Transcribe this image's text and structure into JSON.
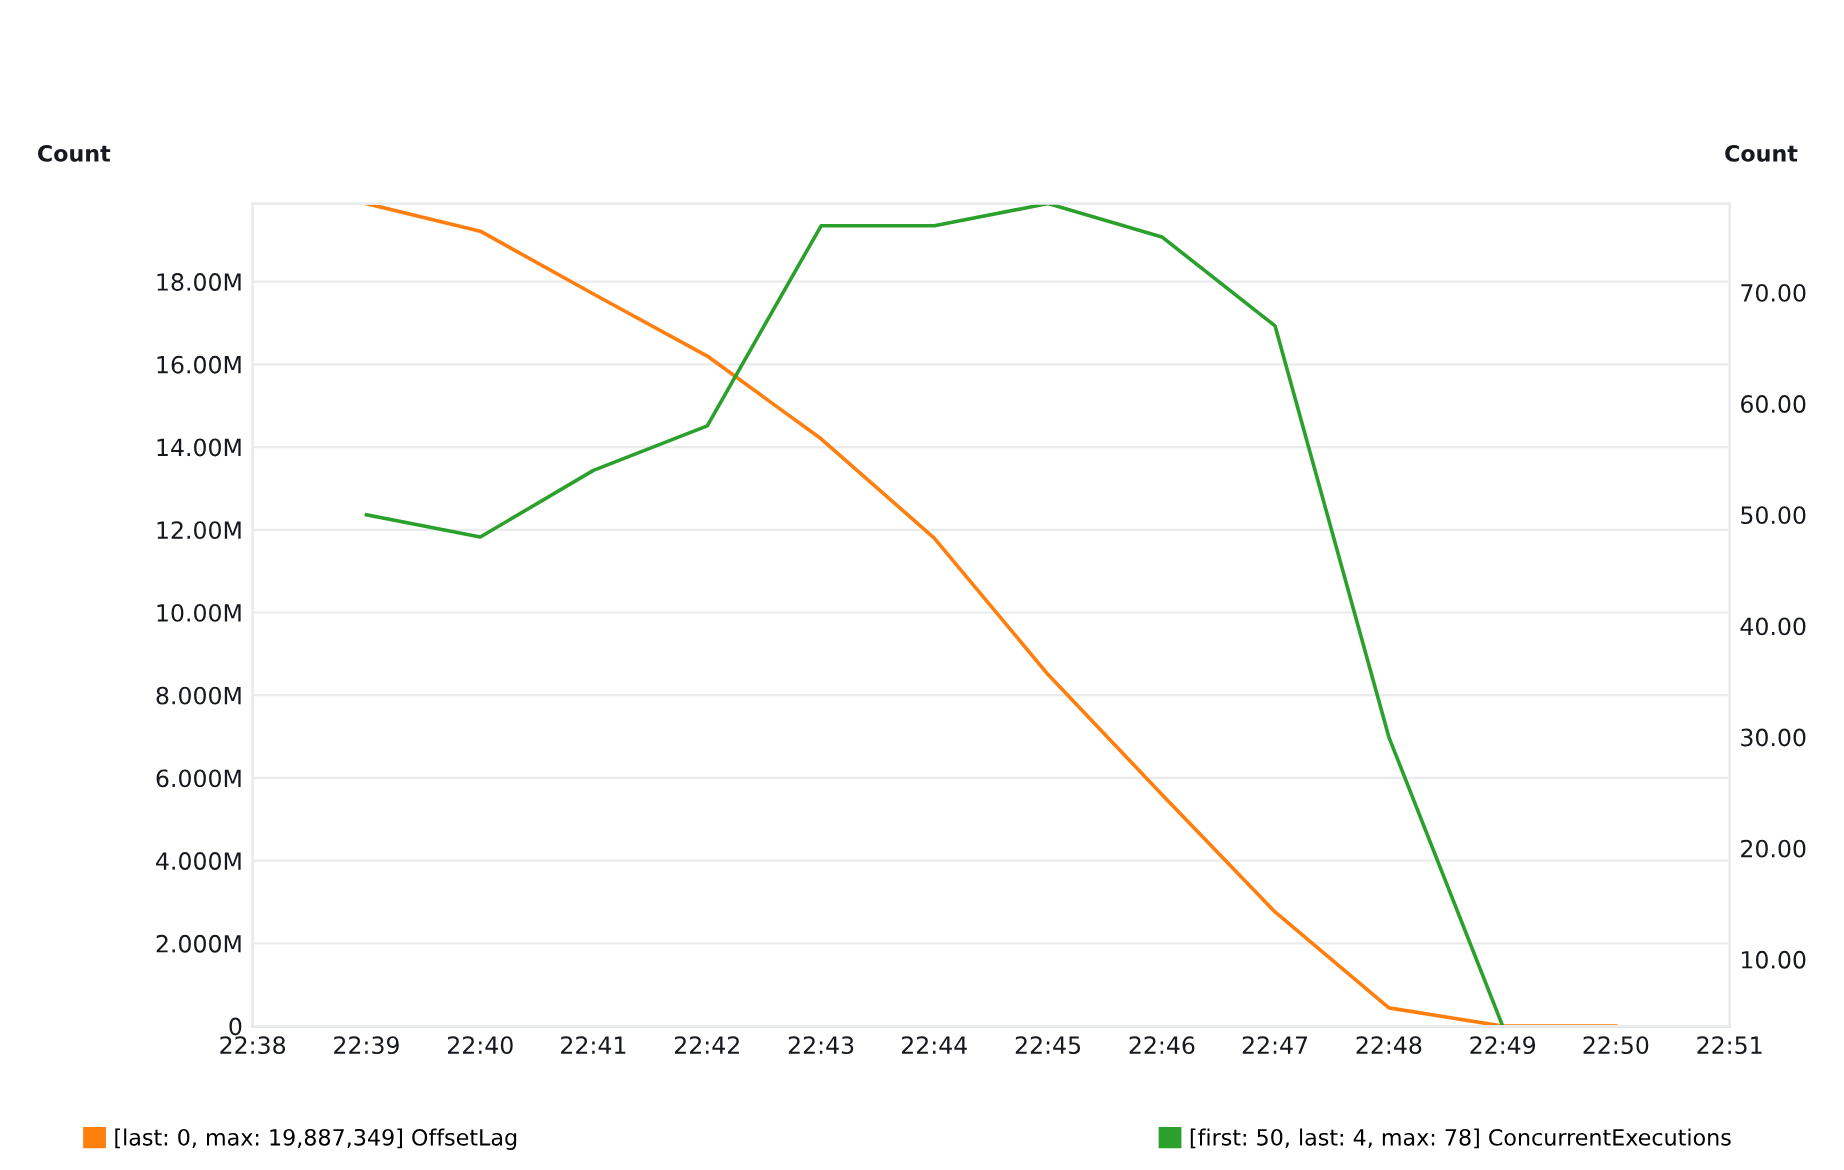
{
  "chart_data": {
    "type": "line",
    "ylabel": "Count",
    "y2label": "Count",
    "x": [
      22.65,
      22.6667,
      22.6833,
      22.7,
      22.7167,
      22.7333,
      22.75,
      22.7667,
      22.7833,
      22.8,
      22.8167,
      22.8333
    ],
    "series": [
      {
        "name": "[last: 0, max: 19,887,349] OffsetLag",
        "color": "#ff7f0e",
        "values": [
          19887349,
          19220000,
          17700000,
          16200000,
          14200000,
          11800000,
          8500000,
          5600000,
          2760000,
          440000,
          0,
          0
        ]
      },
      {
        "name": "[first: 50, last: 4, max: 78] ConcurrentExecutions",
        "color": "#2ca02c",
        "axis": "y2",
        "x": [
          22.65,
          22.6667,
          22.6833,
          22.7,
          22.7167,
          22.7333,
          22.75,
          22.7667,
          22.7833,
          22.8,
          22.8167
        ],
        "values": [
          50,
          48,
          54,
          58,
          76,
          76,
          78,
          75,
          67,
          30,
          4
        ]
      }
    ],
    "xlim": [
      22.6333,
      22.85
    ],
    "xticks": [
      {
        "value": 22.6333,
        "label": "22:38"
      },
      {
        "value": 22.65,
        "label": "22:39"
      },
      {
        "value": 22.6667,
        "label": "22:40"
      },
      {
        "value": 22.6833,
        "label": "22:41"
      },
      {
        "value": 22.7,
        "label": "22:42"
      },
      {
        "value": 22.7167,
        "label": "22:43"
      },
      {
        "value": 22.7333,
        "label": "22:44"
      },
      {
        "value": 22.75,
        "label": "22:45"
      },
      {
        "value": 22.7667,
        "label": "22:46"
      },
      {
        "value": 22.7833,
        "label": "22:47"
      },
      {
        "value": 22.8,
        "label": "22:48"
      },
      {
        "value": 22.8167,
        "label": "22:49"
      },
      {
        "value": 22.8333,
        "label": "22:50"
      },
      {
        "value": 22.85,
        "label": "22:51"
      }
    ],
    "ylim": [
      0,
      19887349
    ],
    "yticks": [
      0,
      {
        "value": 2000000,
        "label": "2.000M"
      },
      {
        "value": 4000000,
        "label": "4.000M"
      },
      {
        "value": 6000000,
        "label": "6.000M"
      },
      {
        "value": 8000000,
        "label": "8.000M"
      },
      {
        "value": 10000000,
        "label": "10.00M"
      },
      {
        "value": 12000000,
        "label": "12.00M"
      },
      {
        "value": 14000000,
        "label": "14.00M"
      },
      {
        "value": 16000000,
        "label": "16.00M"
      },
      {
        "value": 18000000,
        "label": "18.00M"
      }
    ],
    "y2lim": [
      4,
      78
    ],
    "y2ticks": [
      {
        "value": 10,
        "label": "10.00"
      },
      {
        "value": 20,
        "label": "20.00"
      },
      {
        "value": 30,
        "label": "30.00"
      },
      {
        "value": 40,
        "label": "40.00"
      },
      {
        "value": 50,
        "label": "50.00"
      },
      {
        "value": 60,
        "label": "60.00"
      },
      {
        "value": 70,
        "label": "70.00"
      }
    ],
    "grid": "y",
    "legend": "bottom",
    "marker": "none",
    "line_style": "solid"
  }
}
